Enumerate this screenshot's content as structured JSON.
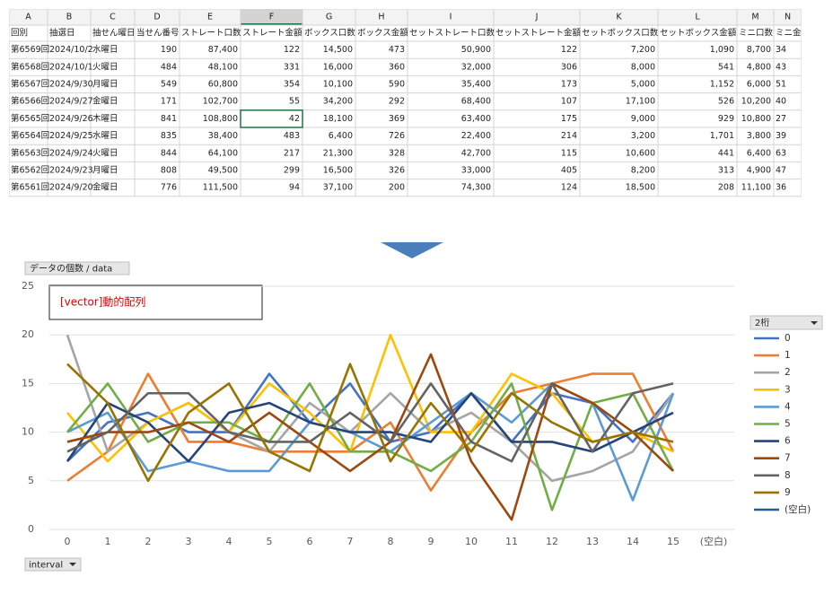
{
  "spreadsheet": {
    "column_letters": [
      "A",
      "B",
      "C",
      "D",
      "E",
      "F",
      "G",
      "H",
      "I",
      "J",
      "K",
      "L",
      "M",
      "N"
    ],
    "header": [
      "回別",
      "抽選日",
      "抽せん曜日",
      "当せん番号",
      "ストレート口数",
      "ストレート金額",
      "ボックス口数",
      "ボックス金額",
      "セットストレート口数",
      "セットストレート金額",
      "セットボックス口数",
      "セットボックス金額",
      "ミニ口数",
      "ミニ金額"
    ],
    "rows": [
      [
        "第6569回",
        "2024/10/2",
        "水曜日",
        "190",
        "87,400",
        "122",
        "14,500",
        "473",
        "50,900",
        "122",
        "7,200",
        "1,090",
        "8,700",
        "34"
      ],
      [
        "第6568回",
        "2024/10/1",
        "火曜日",
        "484",
        "48,100",
        "331",
        "16,000",
        "360",
        "32,000",
        "306",
        "8,000",
        "541",
        "4,800",
        "43"
      ],
      [
        "第6567回",
        "2024/9/30",
        "月曜日",
        "549",
        "60,800",
        "354",
        "10,100",
        "590",
        "35,400",
        "173",
        "5,000",
        "1,152",
        "6,000",
        "51"
      ],
      [
        "第6566回",
        "2024/9/27",
        "金曜日",
        "171",
        "102,700",
        "55",
        "34,200",
        "292",
        "68,400",
        "107",
        "17,100",
        "526",
        "10,200",
        "40"
      ],
      [
        "第6565回",
        "2024/9/26",
        "木曜日",
        "841",
        "108,800",
        "42",
        "18,100",
        "369",
        "63,400",
        "175",
        "9,000",
        "929",
        "10,800",
        "27"
      ],
      [
        "第6564回",
        "2024/9/25",
        "水曜日",
        "835",
        "38,400",
        "483",
        "6,400",
        "726",
        "22,400",
        "214",
        "3,200",
        "1,701",
        "3,800",
        "39"
      ],
      [
        "第6563回",
        "2024/9/24",
        "火曜日",
        "844",
        "64,100",
        "217",
        "21,300",
        "328",
        "42,700",
        "115",
        "10,600",
        "441",
        "6,400",
        "63"
      ],
      [
        "第6562回",
        "2024/9/23",
        "月曜日",
        "808",
        "49,500",
        "299",
        "16,500",
        "326",
        "33,000",
        "405",
        "8,200",
        "313",
        "4,900",
        "47"
      ],
      [
        "第6561回",
        "2024/9/20",
        "金曜日",
        "776",
        "111,500",
        "94",
        "37,100",
        "200",
        "74,300",
        "124",
        "18,500",
        "208",
        "11,100",
        "36"
      ]
    ]
  },
  "chart_data": {
    "type": "line",
    "title": "[vector]動的配列",
    "value_field": "データの個数 / data",
    "axis_field": "interval",
    "legend_title": "2桁",
    "categories": [
      0,
      1,
      2,
      3,
      4,
      5,
      6,
      7,
      8,
      9,
      10,
      11,
      12,
      13,
      14,
      15,
      "(空白)"
    ],
    "ylim": [
      0,
      25
    ],
    "yticks": [
      0,
      5,
      10,
      15,
      20,
      25
    ],
    "grid": true,
    "series": [
      {
        "name": "0",
        "color": "#4472c4",
        "values": [
          7,
          11,
          12,
          10,
          10,
          16,
          11,
          15,
          9,
          10,
          14,
          9,
          14,
          13,
          9,
          14,
          null
        ]
      },
      {
        "name": "1",
        "color": "#ed7d31",
        "values": [
          5,
          8,
          16,
          9,
          9,
          8,
          8,
          8,
          11,
          4,
          10,
          14,
          15,
          16,
          16,
          8,
          null
        ]
      },
      {
        "name": "2",
        "color": "#a5a5a5",
        "values": [
          20,
          8,
          11,
          13,
          10,
          8,
          13,
          10,
          14,
          10,
          12,
          9,
          5,
          6,
          8,
          14,
          null
        ]
      },
      {
        "name": "3",
        "color": "#ffc000",
        "values": [
          12,
          7,
          11,
          13,
          10,
          15,
          12,
          8,
          20,
          10,
          10,
          16,
          14,
          9,
          10,
          8,
          null
        ]
      },
      {
        "name": "4",
        "color": "#5b9bd5",
        "values": [
          10,
          12,
          6,
          7,
          6,
          6,
          11,
          10,
          8,
          11,
          14,
          11,
          15,
          13,
          3,
          14,
          null
        ]
      },
      {
        "name": "5",
        "color": "#70ad47",
        "values": [
          10,
          15,
          9,
          11,
          11,
          9,
          15,
          8,
          8,
          6,
          9,
          15,
          2,
          13,
          14,
          6,
          null
        ]
      },
      {
        "name": "6",
        "color": "#264478",
        "values": [
          7,
          13,
          11,
          7,
          12,
          13,
          11,
          10,
          10,
          9,
          14,
          9,
          9,
          8,
          10,
          12,
          null
        ]
      },
      {
        "name": "7",
        "color": "#9e480e",
        "values": [
          9,
          10,
          10,
          11,
          9,
          12,
          9,
          6,
          9,
          18,
          7,
          1,
          15,
          13,
          10,
          6,
          null
        ]
      },
      {
        "name": "8",
        "color": "#636363",
        "values": [
          8,
          10,
          14,
          14,
          10,
          9,
          9,
          12,
          9,
          15,
          9,
          7,
          15,
          8,
          14,
          15,
          null
        ]
      },
      {
        "name": "9",
        "color": "#997300",
        "values": [
          17,
          13,
          5,
          12,
          15,
          8,
          6,
          17,
          7,
          13,
          8,
          14,
          11,
          9,
          10,
          9,
          null
        ]
      },
      {
        "name": "(空白)",
        "color": "#255e91",
        "values": [
          null,
          null,
          null,
          null,
          null,
          null,
          null,
          null,
          null,
          null,
          null,
          null,
          null,
          null,
          null,
          null,
          null
        ]
      }
    ]
  }
}
